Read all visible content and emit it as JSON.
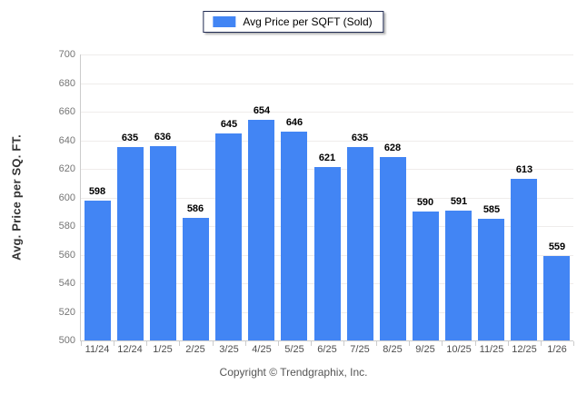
{
  "legend": {
    "label": "Avg Price per SQFT (Sold)",
    "swatch_color": "#4285f4"
  },
  "footer": {
    "copyright": "Copyright © Trendgraphix, Inc."
  },
  "chart_data": {
    "type": "bar",
    "title": "",
    "xlabel": "",
    "ylabel": "Avg. Price per SQ. FT.",
    "categories": [
      "11/24",
      "12/24",
      "1/25",
      "2/25",
      "3/25",
      "4/25",
      "5/25",
      "6/25",
      "7/25",
      "8/25",
      "9/25",
      "10/25",
      "11/25",
      "12/25",
      "1/26"
    ],
    "series": [
      {
        "name": "Avg Price per SQFT (Sold)",
        "values": [
          598,
          635,
          636,
          586,
          645,
          654,
          646,
          621,
          635,
          628,
          590,
          591,
          585,
          613,
          559
        ]
      }
    ],
    "ylim": [
      500,
      700
    ],
    "ytick_step": 20,
    "grid": true,
    "legend_position": "top-center",
    "bar_color": "#4285f4"
  }
}
